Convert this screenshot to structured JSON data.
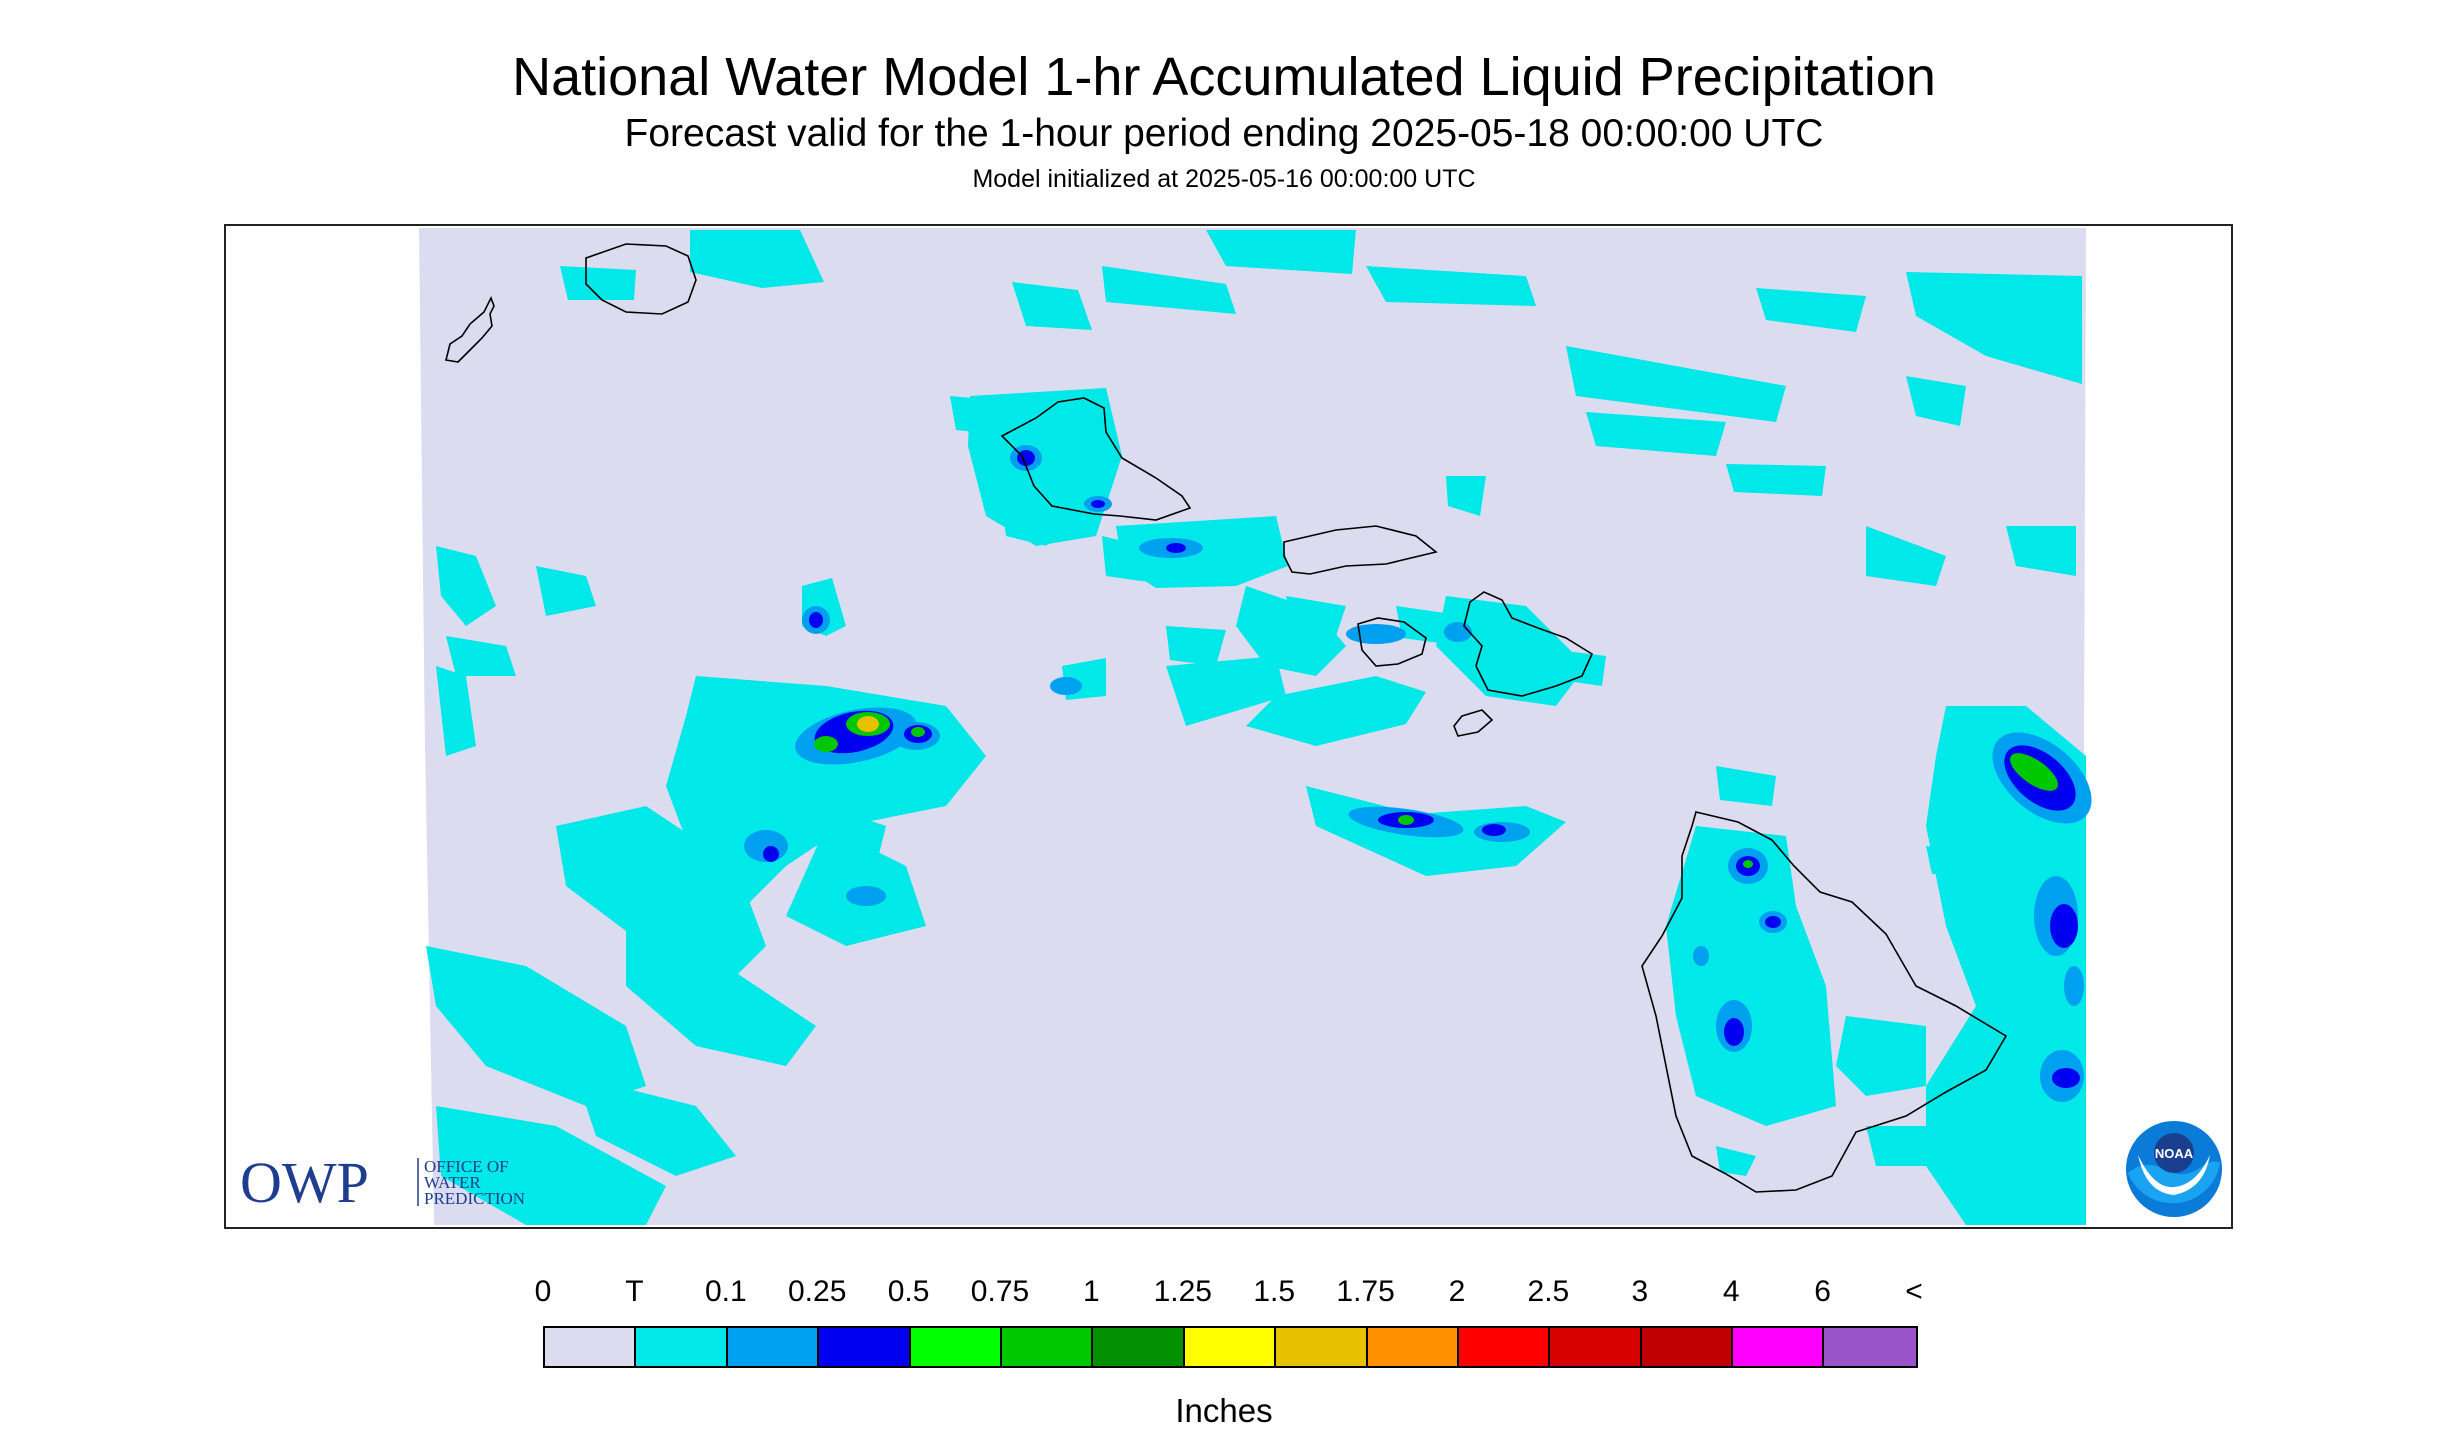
{
  "header": {
    "title": "National Water Model 1-hr Accumulated Liquid Precipitation",
    "subtitle": "Forecast valid for the 1-hour period ending 2025-05-18 00:00:00 UTC",
    "init_line": "Model initialized at 2025-05-16 00:00:00 UTC"
  },
  "logos": {
    "owp_mark": "OWP",
    "owp_line1": "OFFICE OF",
    "owp_line2": "WATER",
    "owp_line3": "PREDICTION",
    "noaa_mark": "NOAA"
  },
  "legend": {
    "labels": [
      "0",
      "T",
      "0.1",
      "0.25",
      "0.5",
      "0.75",
      "1",
      "1.25",
      "1.5",
      "1.75",
      "2",
      "2.5",
      "3",
      "4",
      "6",
      "<"
    ],
    "colors": [
      "#dcdcf0",
      "#00e8e8",
      "#00a0f0",
      "#0000f0",
      "#00ff00",
      "#00c800",
      "#009000",
      "#ffff00",
      "#e7c000",
      "#ff9000",
      "#ff0000",
      "#d60000",
      "#c00000",
      "#ff00ff",
      "#9955c9"
    ],
    "unit": "Inches"
  },
  "map": {
    "background_color": "#dcdcf0",
    "coastline_color": "#000000",
    "islands": [
      "Kauai",
      "Niihau",
      "Oahu",
      "Molokai",
      "Lanai",
      "Maui",
      "Kahoolawe",
      "Hawaii"
    ]
  }
}
